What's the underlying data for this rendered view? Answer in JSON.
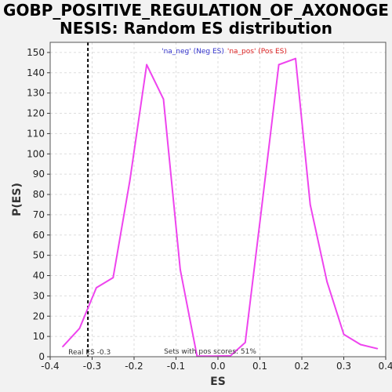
{
  "chart_data": {
    "type": "line",
    "title_line1": "GOBP_POSITIVE_REGULATION_OF_AXONOGE",
    "title_line2": "NESIS: Random ES distribution",
    "xlabel": "ES",
    "ylabel": "P(ES)",
    "xlim": [
      -0.4,
      0.4
    ],
    "ylim": [
      0,
      155
    ],
    "x_ticks": [
      -0.4,
      -0.3,
      -0.2,
      -0.1,
      0.0,
      0.1,
      0.2,
      0.3,
      0.4
    ],
    "x_tick_labels": [
      "-0.4",
      "-0.3",
      "-0.2",
      "-0.1",
      "0.0",
      "0.1",
      "0.2",
      "0.3",
      "0.4"
    ],
    "y_ticks": [
      0,
      10,
      20,
      30,
      40,
      50,
      60,
      70,
      80,
      90,
      100,
      110,
      120,
      130,
      140,
      150
    ],
    "y_tick_labels": [
      "0",
      "10",
      "20",
      "30",
      "40",
      "50",
      "60",
      "70",
      "80",
      "90",
      "100",
      "110",
      "120",
      "130",
      "140",
      "150"
    ],
    "grid": true,
    "series": [
      {
        "name": "Random ES distribution",
        "color": "#ee44ee",
        "x": [
          -0.37,
          -0.33,
          -0.29,
          -0.25,
          -0.21,
          -0.17,
          -0.13,
          -0.09,
          -0.05,
          -0.01,
          0.03,
          0.065,
          0.105,
          0.145,
          0.185,
          0.22,
          0.26,
          0.3,
          0.34,
          0.38
        ],
        "y": [
          5,
          14,
          34,
          39,
          87,
          144,
          127,
          43,
          0.3,
          0.3,
          0.5,
          7,
          75,
          144,
          147,
          75,
          37,
          11,
          6,
          4
        ]
      }
    ],
    "real_es": -0.31,
    "real_es_label": "Real ES -0.3",
    "pos_scores_note": "Sets with pos scores: 51%",
    "legend_neg": "'na_neg' (Neg ES)",
    "legend_pos": "'na_pos' (Pos ES)",
    "legend_neg_color": "#3333cc",
    "legend_pos_color": "#dd2222",
    "line_color": "#ee44ee",
    "real_es_color": "#000000",
    "grid_color": "#dddddd"
  }
}
